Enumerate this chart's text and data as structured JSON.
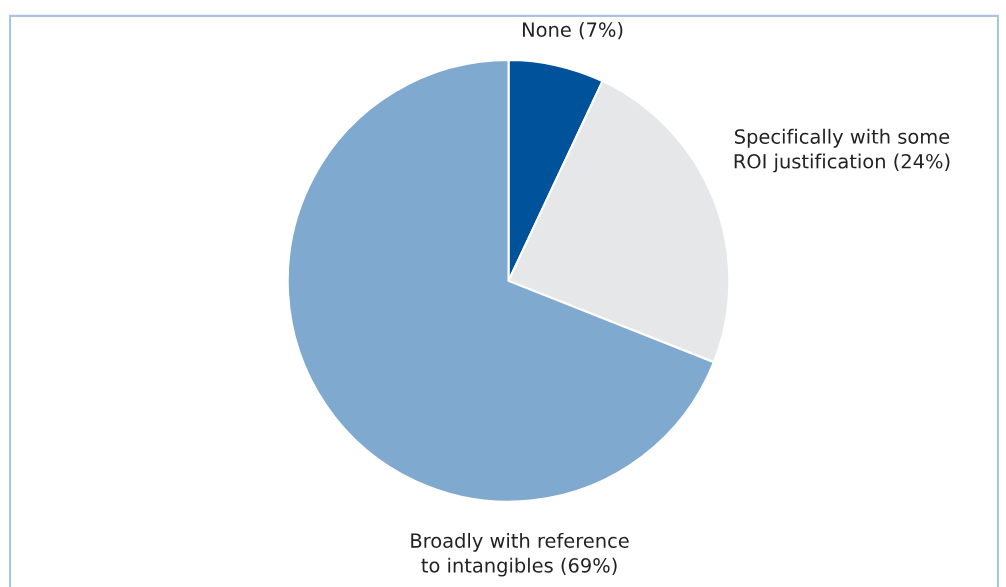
{
  "chart_data": {
    "type": "pie",
    "categories": [
      "None (7%)",
      "Specifically with some\nROI justification (24%)",
      "Broadly with reference\nto intangibles (69%)"
    ],
    "values": [
      7,
      24,
      69
    ],
    "colors": [
      "#00539b",
      "#e6e7e9",
      "#80a9d0"
    ]
  }
}
